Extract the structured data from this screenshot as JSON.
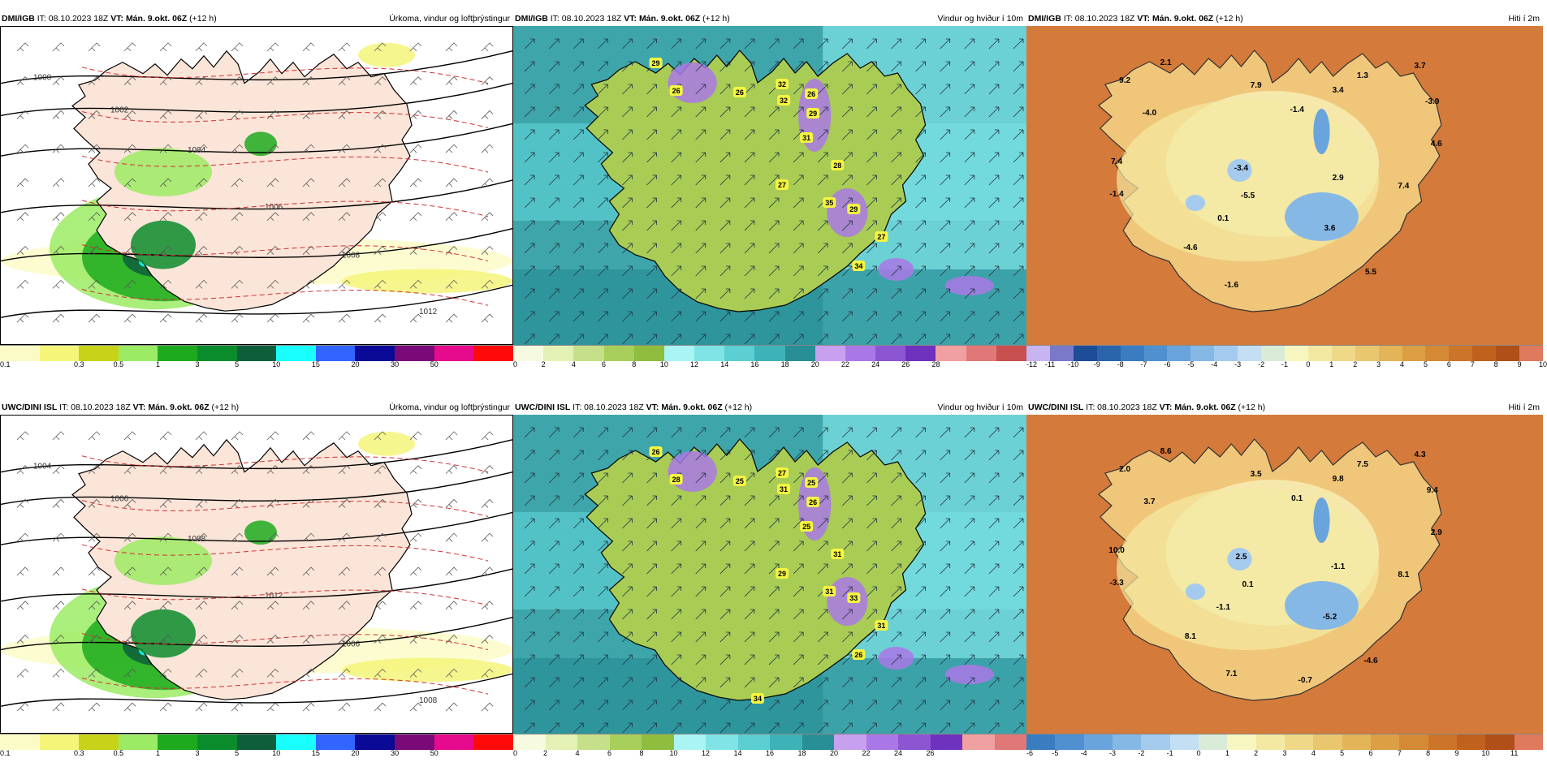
{
  "panels": [
    {
      "id": "p0",
      "model": "DMI/IGB",
      "it": "IT: 08.10.2023 18Z",
      "vt_label": "VT:",
      "vt": "Mán. 9.okt. 06Z",
      "lead": "(+12 h)",
      "field": "Úrkoma, vindur og loftþrýstingur",
      "kind": "precip",
      "isobars": [
        "1000",
        "1002",
        "1004",
        "1006",
        "1008",
        "1012"
      ],
      "colorbar": {
        "colors": [
          "#fbfbc8",
          "#f5f57a",
          "#c8d219",
          "#9beb64",
          "#1eaa1e",
          "#0a8c2d",
          "#0e5e3c",
          "#19ffff",
          "#3264ff",
          "#0a0a96",
          "#7a0a78",
          "#e60a8c",
          "#ff0a0a"
        ],
        "ticks": [
          "0.1",
          "0.3",
          "0.5",
          "1",
          "3",
          "5",
          "10",
          "15",
          "20",
          "30",
          "50"
        ]
      }
    },
    {
      "id": "p1",
      "model": "DMI/IGB",
      "it": "IT: 08.10.2023 18Z",
      "vt_label": "VT:",
      "vt": "Mán. 9.okt. 06Z",
      "lead": "(+12 h)",
      "field": "Vindur og hviður í 10m",
      "kind": "wind",
      "gusts": [
        "29",
        "26",
        "26",
        "32",
        "26",
        "32",
        "29",
        "31",
        "28",
        "27",
        "35",
        "29",
        "27",
        "34"
      ],
      "colorbar": {
        "colors": [
          "#f6fbe0",
          "#e3f2b4",
          "#c6e08a",
          "#a8cf5c",
          "#8fbd3e",
          "#aaf4f4",
          "#80e4e6",
          "#5bcfd2",
          "#3db3b7",
          "#288f97",
          "#c8a0f0",
          "#aa78e6",
          "#8c55d2",
          "#6e32be",
          "#f0a0a0",
          "#e07878",
          "#c85050"
        ],
        "ticks": [
          "0",
          "2",
          "4",
          "6",
          "8",
          "10",
          "12",
          "14",
          "16",
          "18",
          "20",
          "22",
          "24",
          "26",
          "28"
        ]
      }
    },
    {
      "id": "p2",
      "model": "DMI/IGB",
      "it": "IT: 08.10.2023 18Z",
      "vt_label": "VT:",
      "vt": "Mán. 9.okt. 06Z",
      "lead": "(+12 h)",
      "field": "Hiti í 2m",
      "kind": "temp",
      "temps": [
        "2.1",
        "3.7",
        "9.2",
        "1.3",
        "7.9",
        "3.4",
        "-1.4",
        "-3.9",
        "-4.0",
        "4.6",
        "7.4",
        "2.9",
        "-3.4",
        "0.1",
        "-1.4",
        "-5.5",
        "7.4",
        "3.6",
        "-4.6",
        "5.5",
        "-1.6"
      ],
      "colorbar": {
        "colors": [
          "#c8b4f0",
          "#7a78c8",
          "#1e4c96",
          "#2a64aa",
          "#3a7cc0",
          "#5090d0",
          "#6aa4dc",
          "#86b8e6",
          "#a4cbee",
          "#c4def4",
          "#d8ecd8",
          "#f8f6c0",
          "#f4e9a2",
          "#efd988",
          "#e9c76e",
          "#e3b458",
          "#dc9f44",
          "#d48a34",
          "#cc7428",
          "#c0621e",
          "#b05018",
          "#e07a5e"
        ],
        "ticks": [
          "-12",
          "-11",
          "-10",
          "-9",
          "-8",
          "-7",
          "-6",
          "-5",
          "-4",
          "-3",
          "-2",
          "-1",
          "0",
          "1",
          "2",
          "3",
          "4",
          "5",
          "6",
          "7",
          "8",
          "9",
          "10"
        ]
      }
    },
    {
      "id": "p3",
      "model": "UWC/DINI ISL",
      "it": "IT: 08.10.2023 18Z",
      "vt_label": "VT:",
      "vt": "Mán. 9.okt. 06Z",
      "lead": "(+12 h)",
      "field": "Úrkoma, vindur og loftþrýstingur",
      "kind": "precip",
      "isobars": [
        "1004",
        "1006",
        "1008",
        "1012",
        "1006",
        "1008"
      ],
      "colorbar": {
        "colors": [
          "#fbfbc8",
          "#f5f57a",
          "#c8d219",
          "#9beb64",
          "#1eaa1e",
          "#0a8c2d",
          "#0e5e3c",
          "#19ffff",
          "#3264ff",
          "#0a0a96",
          "#7a0a78",
          "#e60a8c",
          "#ff0a0a"
        ],
        "ticks": [
          "0.1",
          "0.3",
          "0.5",
          "1",
          "3",
          "5",
          "10",
          "15",
          "20",
          "30",
          "50"
        ]
      }
    },
    {
      "id": "p4",
      "model": "UWC/DINI ISL",
      "it": "IT: 08.10.2023 18Z",
      "vt_label": "VT:",
      "vt": "Mán. 9.okt. 06Z",
      "lead": "(+12 h)",
      "field": "Vindur og hviður í 10m",
      "kind": "wind",
      "gusts": [
        "26",
        "28",
        "25",
        "27",
        "25",
        "31",
        "26",
        "25",
        "31",
        "29",
        "31",
        "33",
        "31",
        "26",
        "34"
      ],
      "colorbar": {
        "colors": [
          "#f6fbe0",
          "#e3f2b4",
          "#c6e08a",
          "#a8cf5c",
          "#8fbd3e",
          "#aaf4f4",
          "#80e4e6",
          "#5bcfd2",
          "#3db3b7",
          "#288f97",
          "#c8a0f0",
          "#aa78e6",
          "#8c55d2",
          "#6e32be",
          "#f0a0a0",
          "#e07878"
        ],
        "ticks": [
          "0",
          "2",
          "4",
          "6",
          "8",
          "10",
          "12",
          "14",
          "16",
          "18",
          "20",
          "22",
          "24",
          "26"
        ]
      }
    },
    {
      "id": "p5",
      "model": "UWC/DINI ISL",
      "it": "IT: 08.10.2023 18Z",
      "vt_label": "VT:",
      "vt": "Mán. 9.okt. 06Z",
      "lead": "(+12 h)",
      "field": "Hiti í 2m",
      "kind": "temp",
      "temps": [
        "8.6",
        "4.3",
        "2.0",
        "7.5",
        "3.5",
        "9.8",
        "0.1",
        "9.4",
        "3.7",
        "2.9",
        "10.0",
        "-1.1",
        "2.5",
        "-1.1",
        "-3.3",
        "0.1",
        "8.1",
        "-5.2",
        "8.1",
        "-4.6",
        "7.1",
        "-0.7"
      ],
      "colorbar": {
        "colors": [
          "#3a7cc0",
          "#5090d0",
          "#6aa4dc",
          "#86b8e6",
          "#a4cbee",
          "#c4def4",
          "#d8ecd8",
          "#f8f6c0",
          "#f4e9a2",
          "#efd988",
          "#e9c76e",
          "#e3b458",
          "#dc9f44",
          "#d48a34",
          "#cc7428",
          "#c0621e",
          "#b05018",
          "#e07a5e"
        ],
        "ticks": [
          "-6",
          "-5",
          "-4",
          "-3",
          "-2",
          "-1",
          "0",
          "1",
          "2",
          "3",
          "4",
          "5",
          "6",
          "7",
          "8",
          "9",
          "10",
          "11"
        ]
      }
    }
  ]
}
